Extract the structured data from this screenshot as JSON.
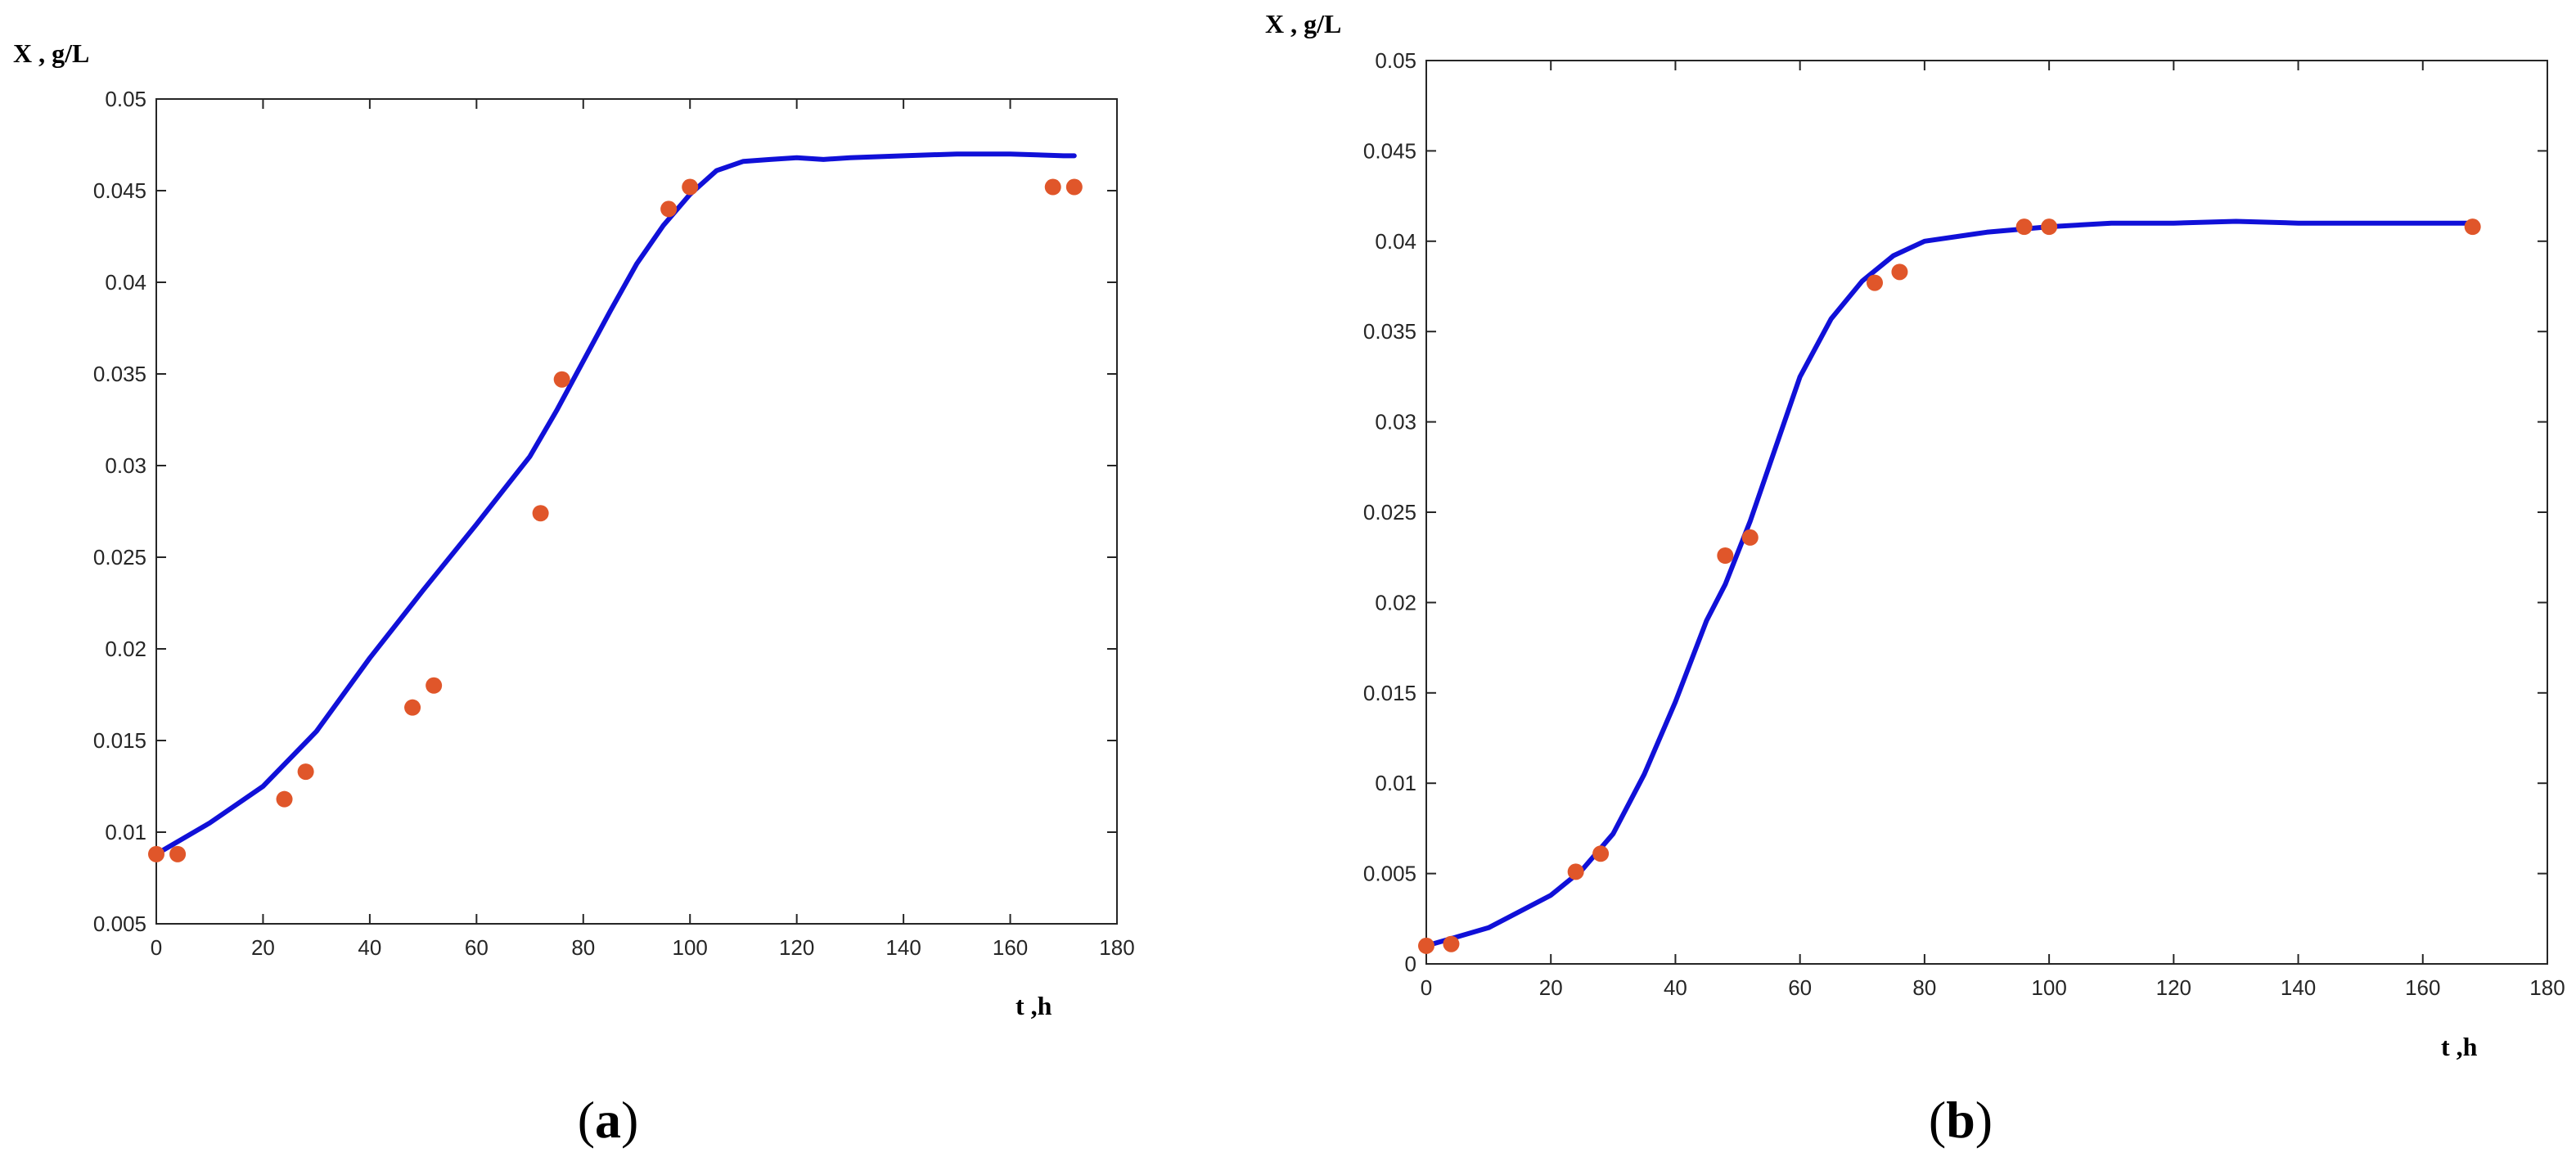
{
  "chart_data": [
    {
      "type": "line",
      "panel_label": "a",
      "xlabel": "t ,h",
      "ylabel": "X , g/L",
      "xlim": [
        0,
        180
      ],
      "ylim": [
        0.005,
        0.05
      ],
      "x_ticks": [
        "0",
        "20",
        "40",
        "60",
        "80",
        "100",
        "120",
        "140",
        "160",
        "180"
      ],
      "y_ticks": [
        "0.005",
        "0.01",
        "0.015",
        "0.02",
        "0.025",
        "0.03",
        "0.035",
        "0.04",
        "0.045",
        "0.05"
      ],
      "grid": false,
      "colors": {
        "model": "#1010d8",
        "experimental": "#e0562a"
      },
      "series": [
        {
          "kind": "line",
          "x": [
            0,
            10,
            20,
            30,
            40,
            50,
            60,
            70,
            75,
            80,
            85,
            90,
            95,
            100,
            105,
            110,
            115,
            120,
            125,
            130,
            140,
            150,
            160,
            170,
            172
          ],
          "values": [
            0.0088,
            0.0105,
            0.0125,
            0.0155,
            0.0195,
            0.0232,
            0.0268,
            0.0305,
            0.033,
            0.0357,
            0.0384,
            0.041,
            0.0431,
            0.0448,
            0.0461,
            0.0466,
            0.0467,
            0.0468,
            0.0467,
            0.0468,
            0.0469,
            0.047,
            0.047,
            0.0469,
            0.0469
          ]
        },
        {
          "kind": "scatter",
          "x": [
            0,
            4,
            24,
            28,
            48,
            52,
            72,
            76,
            96,
            100,
            168,
            172
          ],
          "values": [
            0.0088,
            0.0088,
            0.0118,
            0.0133,
            0.0168,
            0.018,
            0.0274,
            0.0347,
            0.044,
            0.0452,
            0.0452,
            0.0452
          ]
        }
      ]
    },
    {
      "type": "line",
      "panel_label": "b",
      "xlabel": "t ,h",
      "ylabel": "X , g/L",
      "xlim": [
        0,
        180
      ],
      "ylim": [
        0,
        0.05
      ],
      "x_ticks": [
        "0",
        "20",
        "40",
        "60",
        "80",
        "100",
        "120",
        "140",
        "160",
        "180"
      ],
      "y_ticks": [
        "0",
        "0.005",
        "0.01",
        "0.015",
        "0.02",
        "0.025",
        "0.03",
        "0.035",
        "0.04",
        "0.045",
        "0.05"
      ],
      "grid": false,
      "colors": {
        "model": "#1010d8",
        "experimental": "#e0562a"
      },
      "series": [
        {
          "kind": "line",
          "x": [
            0,
            10,
            20,
            25,
            30,
            35,
            40,
            45,
            48,
            52,
            55,
            60,
            65,
            70,
            75,
            80,
            90,
            100,
            110,
            120,
            130,
            140,
            150,
            160,
            168
          ],
          "values": [
            0.001,
            0.002,
            0.0038,
            0.0052,
            0.0072,
            0.0105,
            0.0145,
            0.019,
            0.021,
            0.0245,
            0.0275,
            0.0325,
            0.0357,
            0.0378,
            0.0392,
            0.04,
            0.0405,
            0.0408,
            0.041,
            0.041,
            0.0411,
            0.041,
            0.041,
            0.041,
            0.041
          ]
        },
        {
          "kind": "scatter",
          "x": [
            0,
            4,
            24,
            28,
            48,
            52,
            72,
            76,
            96,
            100,
            168
          ],
          "values": [
            0.001,
            0.0011,
            0.0051,
            0.0061,
            0.0226,
            0.0236,
            0.0377,
            0.0383,
            0.0408,
            0.0408,
            0.0408
          ]
        }
      ]
    }
  ]
}
